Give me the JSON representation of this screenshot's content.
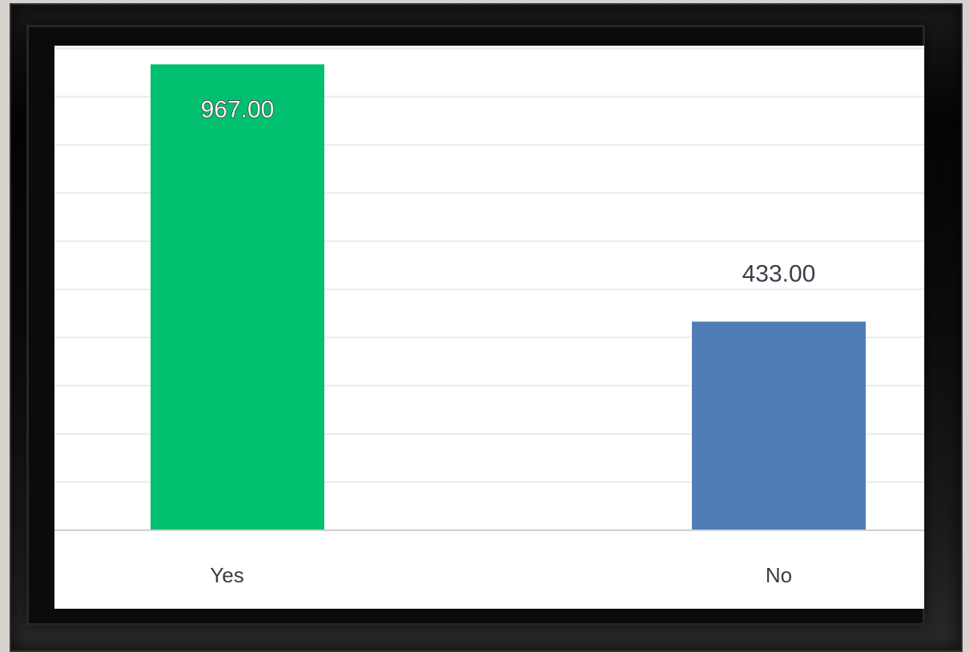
{
  "chart_data": {
    "type": "bar",
    "categories": [
      "Yes",
      "No"
    ],
    "values": [
      967.0,
      433.0
    ],
    "value_labels": [
      "967.00",
      "433.00"
    ],
    "colors": [
      "#00bf6f",
      "#4f7cb5"
    ],
    "title": "",
    "xlabel": "",
    "ylabel": "",
    "ylim": [
      0,
      1000
    ],
    "grid": true,
    "legend": "none"
  }
}
